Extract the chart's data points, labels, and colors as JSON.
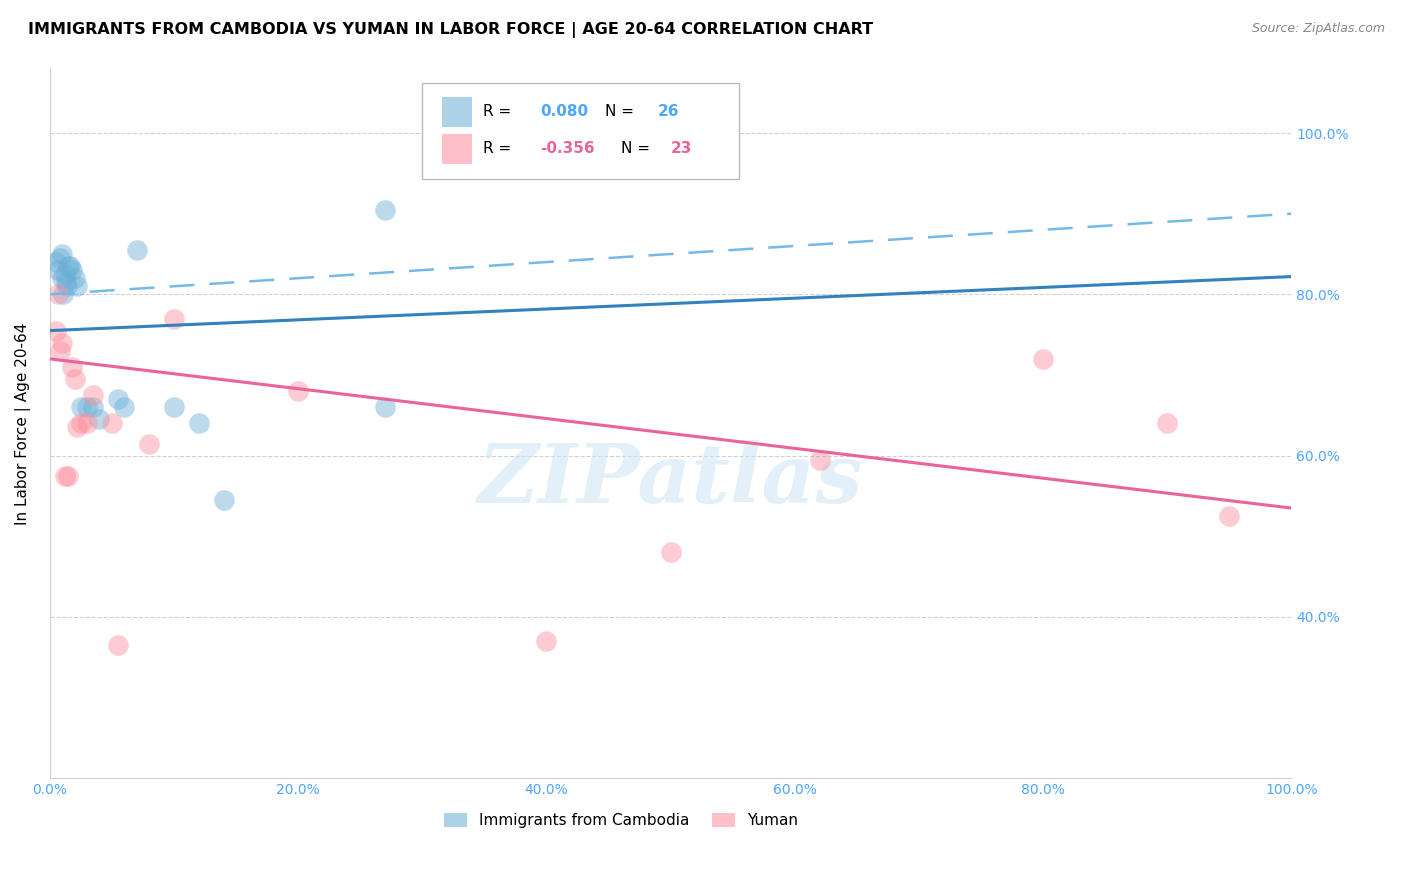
{
  "title": "IMMIGRANTS FROM CAMBODIA VS YUMAN IN LABOR FORCE | AGE 20-64 CORRELATION CHART",
  "source": "Source: ZipAtlas.com",
  "ylabel": "In Labor Force | Age 20-64",
  "xlabel_ticks": [
    "0.0%",
    "20.0%",
    "40.0%",
    "60.0%",
    "80.0%",
    "100.0%"
  ],
  "ylabel_ticks": [
    "40.0%",
    "60.0%",
    "80.0%",
    "100.0%"
  ],
  "xlim": [
    0.0,
    1.0
  ],
  "ylim": [
    0.2,
    1.08
  ],
  "cambodia_x": [
    0.005,
    0.007,
    0.008,
    0.01,
    0.01,
    0.011,
    0.012,
    0.013,
    0.014,
    0.015,
    0.016,
    0.018,
    0.02,
    0.022,
    0.025,
    0.03,
    0.035,
    0.04,
    0.055,
    0.06,
    0.07,
    0.1,
    0.12,
    0.14,
    0.27,
    0.27
  ],
  "cambodia_y": [
    0.84,
    0.83,
    0.845,
    0.82,
    0.85,
    0.8,
    0.825,
    0.815,
    0.81,
    0.835,
    0.835,
    0.83,
    0.82,
    0.81,
    0.66,
    0.66,
    0.66,
    0.645,
    0.67,
    0.66,
    0.855,
    0.66,
    0.64,
    0.545,
    0.905,
    0.66
  ],
  "yuman_x": [
    0.005,
    0.007,
    0.008,
    0.01,
    0.012,
    0.015,
    0.018,
    0.02,
    0.022,
    0.025,
    0.03,
    0.035,
    0.05,
    0.055,
    0.08,
    0.1,
    0.2,
    0.4,
    0.5,
    0.62,
    0.8,
    0.9,
    0.95
  ],
  "yuman_y": [
    0.755,
    0.8,
    0.73,
    0.74,
    0.575,
    0.575,
    0.71,
    0.695,
    0.635,
    0.64,
    0.64,
    0.675,
    0.64,
    0.365,
    0.615,
    0.77,
    0.68,
    0.37,
    0.48,
    0.595,
    0.72,
    0.64,
    0.525
  ],
  "cambodia_R": 0.08,
  "cambodia_N": 26,
  "yuman_R": -0.356,
  "yuman_N": 23,
  "cambodia_color": "#6baed6",
  "yuman_color": "#fc8d9c",
  "cambodia_line_color": "#3182bd",
  "yuman_line_color": "#e8649a",
  "trend_dashed_color": "#74b9e8",
  "cam_line_start_y": 0.755,
  "cam_line_end_y": 0.822,
  "yum_line_start_y": 0.72,
  "yum_line_end_y": 0.535,
  "dash_line_start_y": 0.8,
  "dash_line_end_y": 0.9,
  "watermark": "ZIPatlas",
  "title_fontsize": 11.5,
  "axis_label_fontsize": 11,
  "tick_fontsize": 10,
  "legend_fontsize": 11
}
